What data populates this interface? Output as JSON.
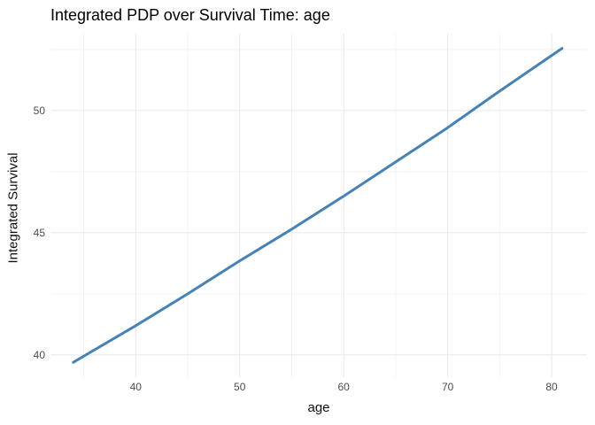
{
  "page": {
    "background_color": "#FFFFFF"
  },
  "chart_data": {
    "type": "line",
    "title": "Integrated PDP over Survival Time: age",
    "xlabel": "age",
    "ylabel": "Integrated Survival",
    "x": [
      34,
      40,
      45,
      50,
      55,
      60,
      65,
      70,
      75,
      81
    ],
    "y": [
      39.7,
      41.2,
      42.5,
      43.85,
      45.15,
      46.5,
      47.9,
      49.3,
      50.8,
      52.55
    ],
    "xlim": [
      31.8,
      83.4
    ],
    "ylim": [
      39.09,
      53.15
    ],
    "x_major_ticks": [
      40,
      50,
      60,
      70,
      80
    ],
    "x_minor_ticks": [
      35,
      45,
      55,
      65,
      75
    ],
    "y_major_ticks": [
      40,
      45,
      50
    ],
    "y_minor_ticks": [
      42.5,
      47.5,
      52.5
    ],
    "grid": "on",
    "legend": "none",
    "line_color": "#4682B4",
    "line_width": 3,
    "major_grid_color": "#E7E7E7",
    "minor_grid_color": "#F2F2F2",
    "tick_label_color": "#4D4D4D",
    "axis_title_color": "#111111",
    "title_color": "#000000"
  }
}
